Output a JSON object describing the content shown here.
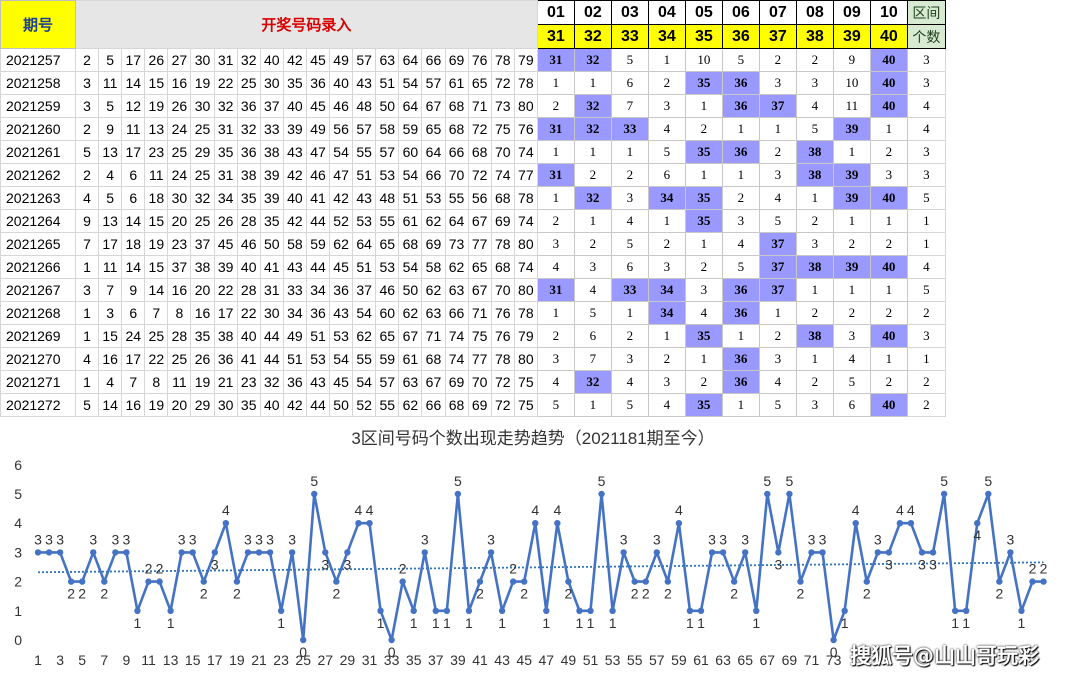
{
  "header": {
    "period_label": "期号",
    "entry_label": "开奖号码录入",
    "zones": [
      "01",
      "02",
      "03",
      "04",
      "05",
      "06",
      "07",
      "08",
      "09",
      "10"
    ],
    "zone_numbers": [
      "31",
      "32",
      "33",
      "34",
      "35",
      "36",
      "37",
      "38",
      "39",
      "40"
    ],
    "count_label_top": "区间",
    "count_label_bottom": "个数"
  },
  "rows": [
    {
      "period": "2021257",
      "nums": [
        2,
        5,
        17,
        26,
        27,
        30,
        31,
        32,
        40,
        42,
        45,
        49,
        57,
        63,
        64,
        66,
        69,
        76,
        78,
        79
      ],
      "zones": [
        "31",
        "32",
        "5",
        "1",
        "10",
        "5",
        "2",
        "2",
        "9",
        "40"
      ],
      "count": "3"
    },
    {
      "period": "2021258",
      "nums": [
        3,
        11,
        14,
        15,
        16,
        19,
        22,
        25,
        30,
        35,
        36,
        40,
        43,
        51,
        54,
        57,
        61,
        65,
        72,
        78
      ],
      "zones": [
        "1",
        "1",
        "6",
        "2",
        "35",
        "36",
        "3",
        "3",
        "10",
        "40"
      ],
      "count": "3"
    },
    {
      "period": "2021259",
      "nums": [
        3,
        5,
        12,
        19,
        26,
        30,
        32,
        36,
        37,
        40,
        45,
        46,
        48,
        50,
        64,
        67,
        68,
        71,
        73,
        80
      ],
      "zones": [
        "2",
        "32",
        "7",
        "3",
        "1",
        "36",
        "37",
        "4",
        "11",
        "40"
      ],
      "count": "4"
    },
    {
      "period": "2021260",
      "nums": [
        2,
        9,
        11,
        13,
        24,
        25,
        31,
        32,
        33,
        39,
        49,
        56,
        57,
        58,
        59,
        65,
        68,
        72,
        75,
        76
      ],
      "zones": [
        "31",
        "32",
        "33",
        "4",
        "2",
        "1",
        "1",
        "5",
        "39",
        "1"
      ],
      "count": "4"
    },
    {
      "period": "2021261",
      "nums": [
        5,
        13,
        17,
        23,
        25,
        29,
        35,
        36,
        38,
        43,
        47,
        54,
        55,
        57,
        60,
        64,
        66,
        68,
        70,
        74
      ],
      "zones": [
        "1",
        "1",
        "1",
        "5",
        "35",
        "36",
        "2",
        "38",
        "1",
        "2"
      ],
      "count": "3"
    },
    {
      "period": "2021262",
      "nums": [
        2,
        4,
        6,
        11,
        24,
        25,
        31,
        38,
        39,
        42,
        46,
        47,
        51,
        53,
        54,
        66,
        70,
        72,
        74,
        77
      ],
      "zones": [
        "31",
        "2",
        "2",
        "6",
        "1",
        "1",
        "3",
        "38",
        "39",
        "3"
      ],
      "count": "3"
    },
    {
      "period": "2021263",
      "nums": [
        4,
        5,
        6,
        18,
        30,
        32,
        34,
        35,
        39,
        40,
        41,
        42,
        43,
        48,
        51,
        53,
        55,
        56,
        68,
        78
      ],
      "zones": [
        "1",
        "32",
        "3",
        "34",
        "35",
        "2",
        "4",
        "1",
        "39",
        "40"
      ],
      "count": "5"
    },
    {
      "period": "2021264",
      "nums": [
        9,
        13,
        14,
        15,
        20,
        25,
        26,
        28,
        35,
        42,
        44,
        52,
        53,
        55,
        61,
        62,
        64,
        67,
        69,
        74
      ],
      "zones": [
        "2",
        "1",
        "4",
        "1",
        "35",
        "3",
        "5",
        "2",
        "1",
        "1"
      ],
      "count": "1"
    },
    {
      "period": "2021265",
      "nums": [
        7,
        17,
        18,
        19,
        23,
        37,
        45,
        46,
        50,
        58,
        59,
        62,
        64,
        65,
        68,
        69,
        73,
        77,
        78,
        80
      ],
      "zones": [
        "3",
        "2",
        "5",
        "2",
        "1",
        "4",
        "37",
        "3",
        "2",
        "2"
      ],
      "count": "1"
    },
    {
      "period": "2021266",
      "nums": [
        1,
        11,
        14,
        15,
        37,
        38,
        39,
        40,
        41,
        43,
        44,
        45,
        51,
        53,
        54,
        58,
        62,
        65,
        68,
        74
      ],
      "zones": [
        "4",
        "3",
        "6",
        "3",
        "2",
        "5",
        "37",
        "38",
        "39",
        "40"
      ],
      "count": "4"
    },
    {
      "period": "2021267",
      "nums": [
        3,
        7,
        9,
        14,
        16,
        20,
        22,
        28,
        31,
        33,
        34,
        36,
        37,
        46,
        50,
        62,
        63,
        67,
        70,
        80
      ],
      "zones": [
        "31",
        "4",
        "33",
        "34",
        "3",
        "36",
        "37",
        "1",
        "1",
        "1"
      ],
      "count": "5"
    },
    {
      "period": "2021268",
      "nums": [
        1,
        3,
        6,
        7,
        8,
        16,
        17,
        22,
        30,
        34,
        36,
        43,
        54,
        60,
        62,
        63,
        66,
        71,
        76,
        78
      ],
      "zones": [
        "1",
        "5",
        "1",
        "34",
        "4",
        "36",
        "1",
        "2",
        "2",
        "2"
      ],
      "count": "2"
    },
    {
      "period": "2021269",
      "nums": [
        1,
        15,
        24,
        25,
        28,
        35,
        38,
        40,
        44,
        49,
        51,
        53,
        62,
        65,
        67,
        71,
        74,
        75,
        76,
        79
      ],
      "zones": [
        "2",
        "6",
        "2",
        "1",
        "35",
        "1",
        "2",
        "38",
        "3",
        "40"
      ],
      "count": "3"
    },
    {
      "period": "2021270",
      "nums": [
        4,
        16,
        17,
        22,
        25,
        26,
        36,
        41,
        44,
        51,
        53,
        54,
        55,
        59,
        61,
        68,
        74,
        77,
        78,
        80
      ],
      "zones": [
        "3",
        "7",
        "3",
        "2",
        "1",
        "36",
        "3",
        "1",
        "4",
        "1"
      ],
      "count": "1"
    },
    {
      "period": "2021271",
      "nums": [
        1,
        4,
        7,
        8,
        11,
        19,
        21,
        23,
        32,
        36,
        43,
        45,
        54,
        57,
        63,
        67,
        69,
        70,
        72,
        75
      ],
      "zones": [
        "4",
        "32",
        "4",
        "3",
        "2",
        "36",
        "4",
        "2",
        "5",
        "2"
      ],
      "count": "2"
    },
    {
      "period": "2021272",
      "nums": [
        5,
        14,
        16,
        19,
        20,
        29,
        30,
        35,
        40,
        42,
        44,
        50,
        52,
        55,
        62,
        66,
        68,
        69,
        72,
        75
      ],
      "zones": [
        "5",
        "1",
        "5",
        "4",
        "35",
        "1",
        "5",
        "3",
        "6",
        "40"
      ],
      "count": "2"
    }
  ],
  "colors": {
    "hit": "#9999ff",
    "line": "#4472c4",
    "trend": "#2e75b6",
    "header_yellow": "#ffff00",
    "title_red": "#d80000"
  },
  "chart_data": {
    "type": "line",
    "title": "3区间号码个数出现走势趋势（2021181期至今）",
    "xlabel": "",
    "ylabel": "",
    "ylim": [
      0,
      6
    ],
    "yticks": [
      0,
      1,
      2,
      3,
      4,
      5,
      6
    ],
    "grid": false,
    "x": [
      1,
      2,
      3,
      4,
      5,
      6,
      7,
      8,
      9,
      10,
      11,
      12,
      13,
      14,
      15,
      16,
      17,
      18,
      19,
      20,
      21,
      22,
      23,
      24,
      25,
      26,
      27,
      28,
      29,
      30,
      31,
      32,
      33,
      34,
      35,
      36,
      37,
      38,
      39,
      40,
      41,
      42,
      43,
      44,
      45,
      46,
      47,
      48,
      49,
      50,
      51,
      52,
      53,
      54,
      55,
      56,
      57,
      58,
      59,
      60,
      61,
      62,
      63,
      64,
      65,
      66,
      67,
      68,
      69,
      70,
      71,
      72,
      73,
      74,
      75,
      76,
      77,
      78,
      79,
      80,
      81,
      82,
      83,
      84,
      85,
      86,
      87,
      88,
      89,
      90,
      91,
      92
    ],
    "xtick_labels": [
      "1",
      "3",
      "5",
      "7",
      "9",
      "11",
      "13",
      "15",
      "17",
      "19",
      "21",
      "23",
      "25",
      "27",
      "29",
      "31",
      "33",
      "35",
      "37",
      "39",
      "41",
      "43",
      "45",
      "47",
      "49",
      "51",
      "53",
      "55",
      "57",
      "59",
      "61",
      "63",
      "65",
      "67",
      "69",
      "71",
      "73"
    ],
    "series": [
      {
        "name": "",
        "values": [
          3,
          3,
          3,
          2,
          2,
          3,
          2,
          3,
          3,
          1,
          2,
          2,
          1,
          3,
          3,
          2,
          3,
          4,
          2,
          3,
          3,
          3,
          1,
          3,
          0,
          5,
          3,
          2,
          3,
          4,
          4,
          1,
          0,
          2,
          1,
          3,
          1,
          1,
          5,
          1,
          2,
          3,
          1,
          2,
          2,
          4,
          1,
          4,
          2,
          1,
          1,
          5,
          1,
          3,
          2,
          2,
          3,
          2,
          4,
          1,
          1,
          3,
          3,
          2,
          3,
          1,
          5,
          3,
          5,
          2,
          3,
          3,
          0,
          1,
          4,
          2,
          3,
          3,
          4,
          4,
          3,
          3,
          5,
          1,
          1,
          4,
          5,
          2,
          3,
          1,
          2,
          2
        ]
      }
    ],
    "trendline": {
      "type": "linear",
      "style": "dotted"
    },
    "watermark": "搜狐号@山山哥玩彩"
  }
}
